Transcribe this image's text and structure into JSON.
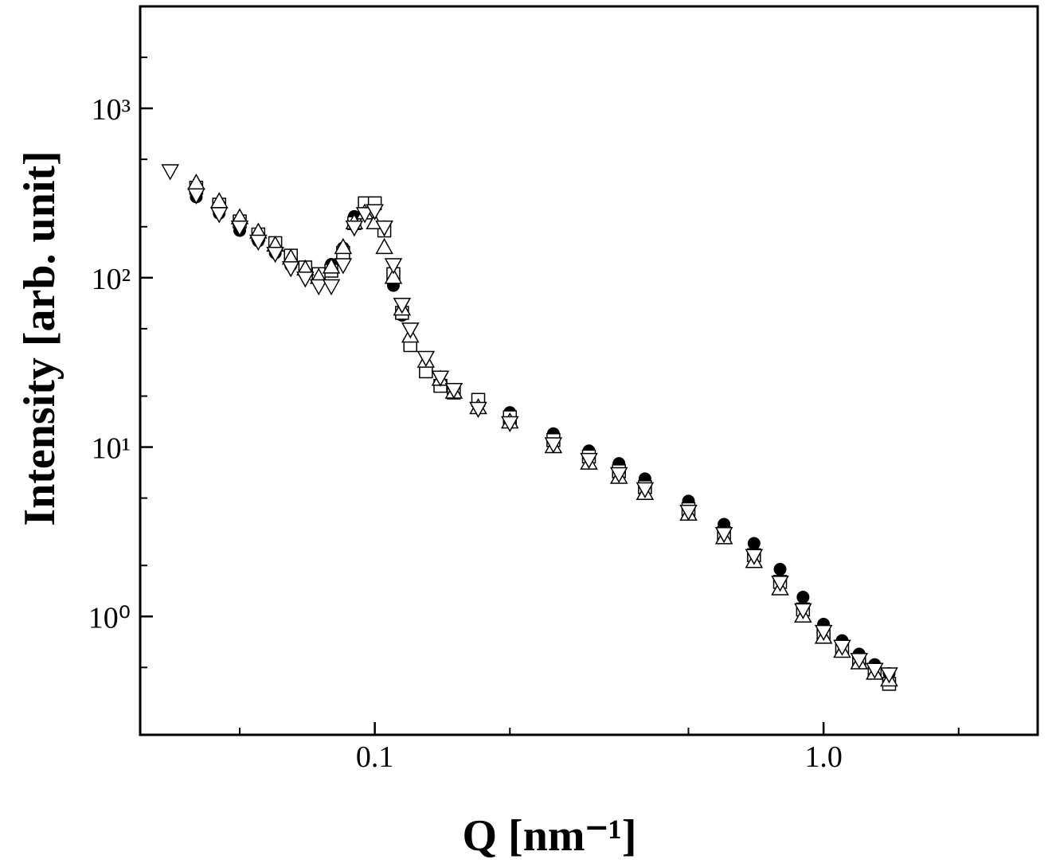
{
  "chart_data": {
    "type": "scatter",
    "xlabel": "Q [nm⁻¹]",
    "ylabel": "Intensity [arb. unit]",
    "xscale": "log",
    "yscale": "log",
    "xlim": [
      0.03,
      3
    ],
    "ylim": [
      0.2,
      4000
    ],
    "xticks": [
      0.1,
      {
        "value": 1,
        "label": "1.0"
      }
    ],
    "yticks": [
      {
        "value": 1,
        "label": "10⁰"
      },
      {
        "value": 10,
        "label": "10¹"
      },
      {
        "value": 100,
        "label": "10²"
      },
      {
        "value": 1000,
        "label": "10³"
      }
    ],
    "xminorticks": [
      0.05,
      0.2,
      0.5,
      2
    ],
    "yminorticks": [
      0.5,
      2,
      5,
      20,
      50,
      200,
      500,
      2000
    ],
    "x": [
      0.035,
      0.04,
      0.045,
      0.05,
      0.055,
      0.06,
      0.065,
      0.07,
      0.075,
      0.08,
      0.085,
      0.09,
      0.095,
      0.1,
      0.105,
      0.11,
      0.115,
      0.12,
      0.13,
      0.14,
      0.15,
      0.17,
      0.2,
      0.25,
      0.3,
      0.35,
      0.4,
      0.5,
      0.6,
      0.7,
      0.8,
      0.9,
      1.0,
      1.1,
      1.2,
      1.3,
      1.4
    ],
    "series": [
      {
        "marker": "circle",
        "color": "#000000",
        "values": [
          null,
          300,
          240,
          190,
          165,
          140,
          118,
          105,
          100,
          120,
          150,
          230,
          270,
          260,
          200,
          90,
          60,
          42,
          30,
          24,
          21,
          18,
          16,
          12,
          9.5,
          8,
          6.5,
          4.8,
          3.5,
          2.7,
          1.9,
          1.3,
          0.9,
          0.72,
          0.6,
          0.52,
          0.46
        ]
      },
      {
        "marker": "square",
        "color": "#000000",
        "values": [
          null,
          340,
          270,
          215,
          180,
          160,
          135,
          115,
          105,
          110,
          140,
          210,
          275,
          275,
          190,
          105,
          62,
          40,
          28,
          23,
          21,
          19,
          15,
          11,
          8.8,
          7.2,
          5.8,
          4.3,
          3.1,
          2.3,
          1.6,
          1.1,
          0.8,
          0.66,
          0.55,
          0.47,
          0.4
        ]
      },
      {
        "marker": "triangle-up",
        "color": "#000000",
        "values": [
          null,
          360,
          280,
          225,
          185,
          155,
          130,
          112,
          100,
          115,
          150,
          210,
          240,
          210,
          150,
          100,
          65,
          45,
          32,
          25,
          21,
          17,
          14,
          10,
          8,
          6.6,
          5.3,
          4,
          2.9,
          2.1,
          1.45,
          1.0,
          0.75,
          0.62,
          0.53,
          0.46,
          0.42
        ]
      },
      {
        "marker": "triangle-down",
        "color": "#000000",
        "values": [
          430,
          310,
          240,
          200,
          165,
          140,
          115,
          100,
          90,
          90,
          120,
          200,
          240,
          250,
          200,
          120,
          70,
          50,
          34,
          26,
          22,
          17,
          14,
          10.5,
          8.5,
          7,
          5.7,
          4.2,
          3.1,
          2.3,
          1.6,
          1.1,
          0.82,
          0.67,
          0.56,
          0.49,
          0.46
        ]
      }
    ]
  }
}
